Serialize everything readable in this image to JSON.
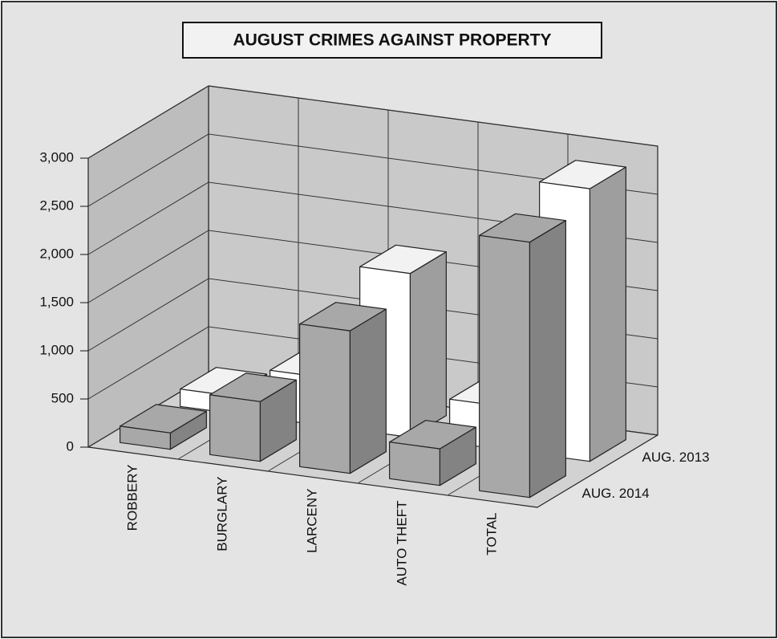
{
  "chart_data": {
    "type": "bar3d",
    "title": "AUGUST CRIMES AGAINST PROPERTY",
    "categories": [
      "ROBBERY",
      "BURGLARY",
      "LARCENY",
      "AUTO THEFT",
      "TOTAL"
    ],
    "series": [
      {
        "name": "AUG. 2014",
        "color": "#a8a8a8",
        "values": [
          170,
          620,
          1480,
          380,
          2650
        ]
      },
      {
        "name": "AUG. 2013",
        "color": "#ffffff",
        "values": [
          180,
          500,
          1700,
          450,
          2830
        ]
      }
    ],
    "ylim": [
      0,
      3000
    ],
    "yticks": [
      0,
      500,
      {
        "value": 1000,
        "label": "1,000"
      },
      {
        "value": 1500,
        "label": "1,500"
      },
      {
        "value": 2000,
        "label": "2,000"
      },
      {
        "value": 2500,
        "label": "2,500"
      },
      {
        "value": 3000,
        "label": "3,000"
      }
    ],
    "grid": true
  }
}
